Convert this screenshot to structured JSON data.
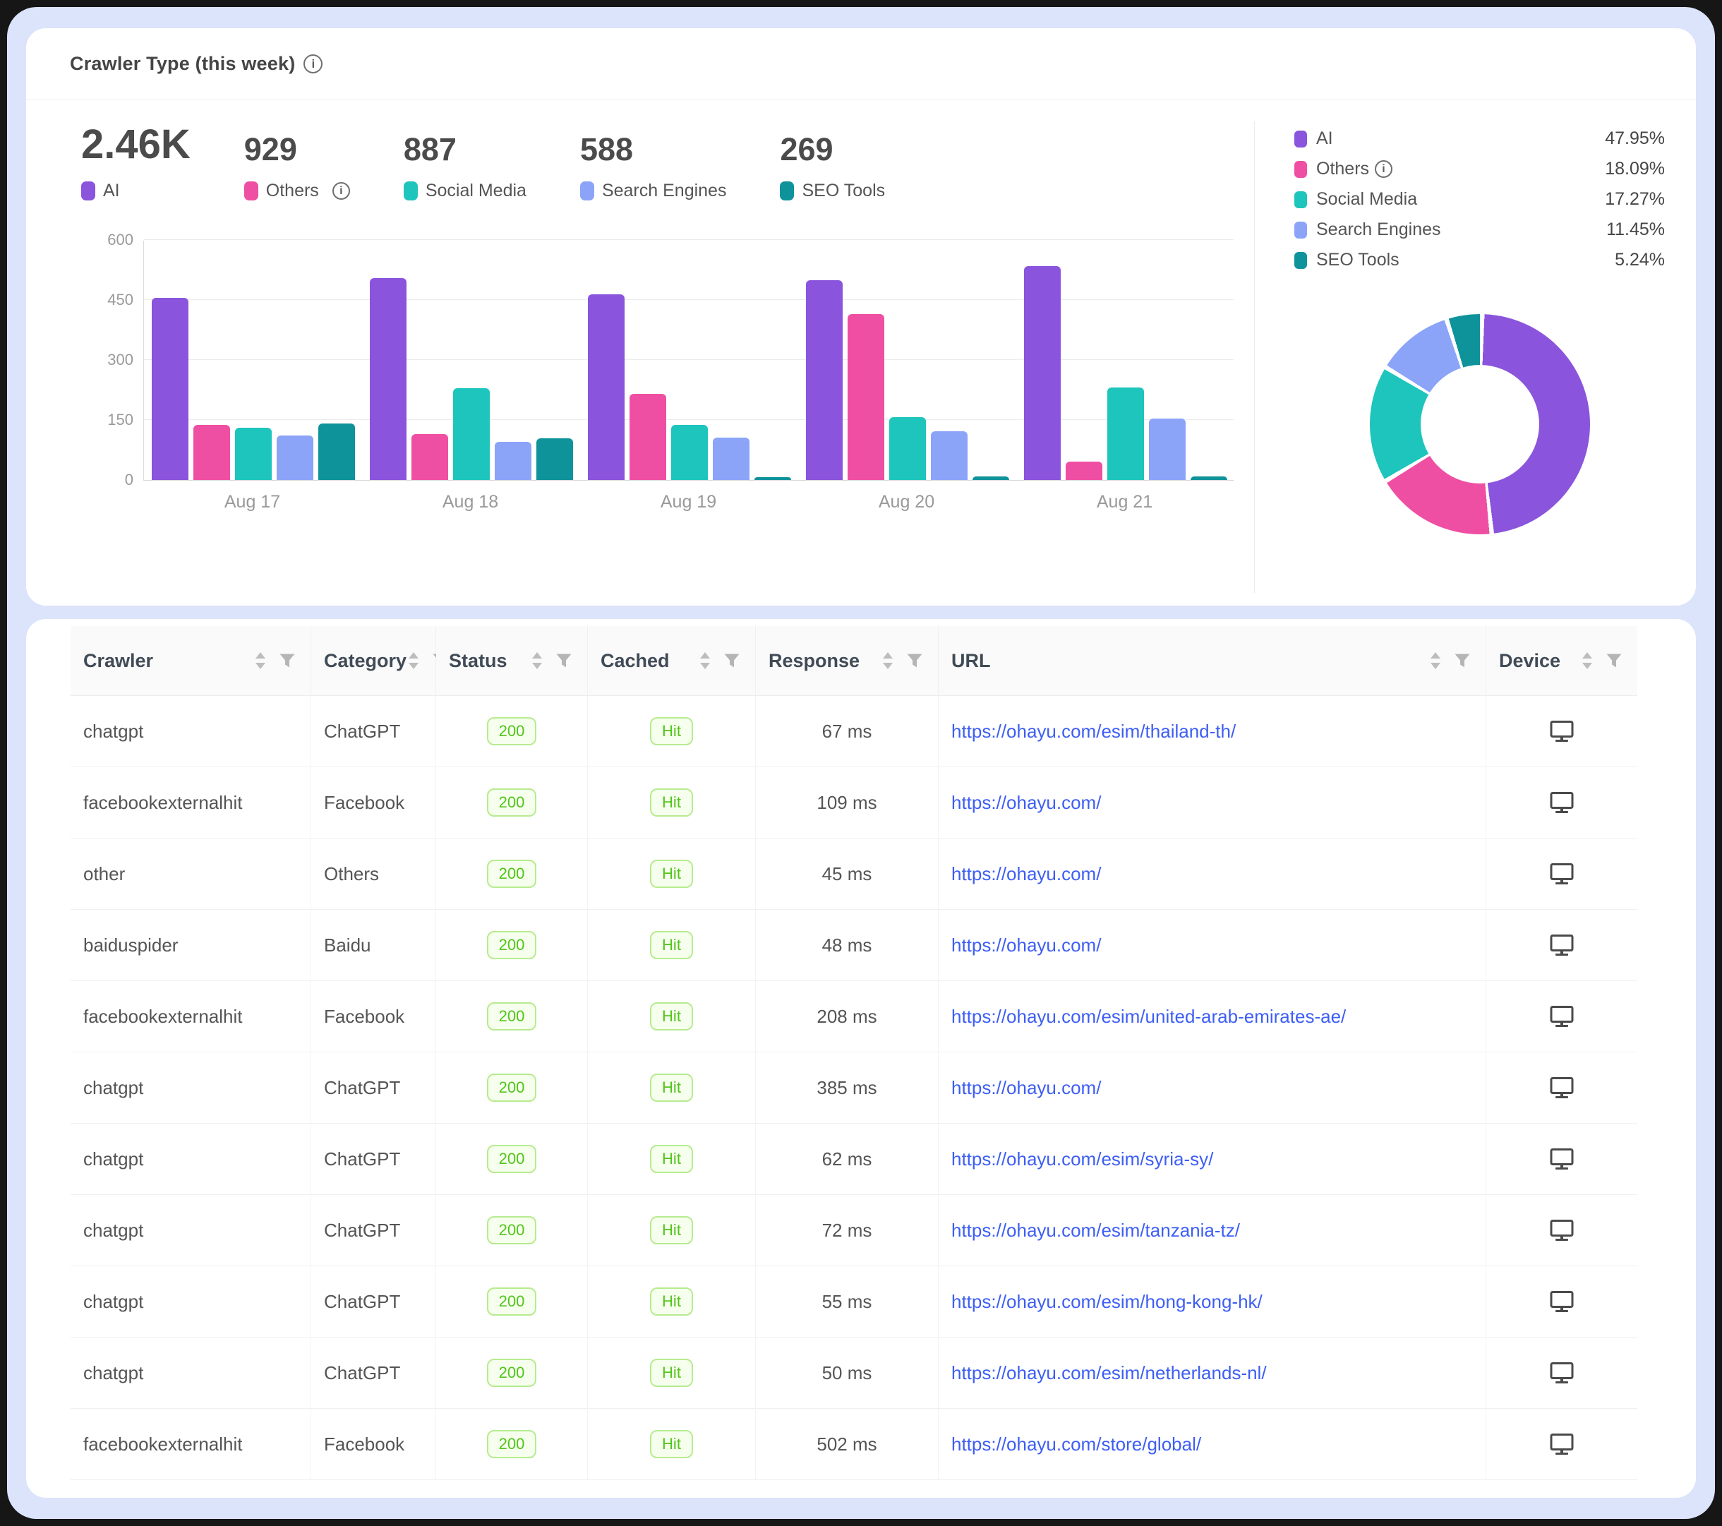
{
  "card": {
    "title": "Crawler Type (this week)",
    "stats": [
      {
        "value": "2.46K",
        "label": "AI",
        "color": "#8a54dd",
        "info": false
      },
      {
        "value": "929",
        "label": "Others",
        "color": "#ef4fa2",
        "info": true
      },
      {
        "value": "887",
        "label": "Social Media",
        "color": "#1dc5bc",
        "info": false
      },
      {
        "value": "588",
        "label": "Search Engines",
        "color": "#8ba4f8",
        "info": false
      },
      {
        "value": "269",
        "label": "SEO Tools",
        "color": "#0f939b",
        "info": false
      }
    ]
  },
  "chart_data": {
    "type": "bar",
    "title": "Crawler Type (this week)",
    "categories": [
      "Aug 17",
      "Aug 18",
      "Aug 19",
      "Aug 20",
      "Aug 21"
    ],
    "series": [
      {
        "name": "AI",
        "color": "#8a54dd",
        "values": [
          455,
          505,
          465,
          500,
          535
        ]
      },
      {
        "name": "Others",
        "color": "#ef4fa2",
        "values": [
          138,
          115,
          215,
          415,
          46
        ]
      },
      {
        "name": "Social Media",
        "color": "#1dc5bc",
        "values": [
          130,
          230,
          138,
          157,
          232
        ]
      },
      {
        "name": "Search Engines",
        "color": "#8ba4f8",
        "values": [
          112,
          95,
          106,
          122,
          153
        ]
      },
      {
        "name": "SEO Tools",
        "color": "#0f939b",
        "values": [
          142,
          104,
          6,
          8,
          9
        ]
      }
    ],
    "yticks": [
      0,
      150,
      300,
      450,
      600
    ],
    "ylim": [
      0,
      600
    ],
    "grid": true,
    "legend_position": "right",
    "donut": [
      {
        "label": "AI",
        "pct": 47.95,
        "pct_label": "47.95%",
        "color": "#8a54dd",
        "info": false
      },
      {
        "label": "Others",
        "pct": 18.09,
        "pct_label": "18.09%",
        "color": "#ef4fa2",
        "info": true
      },
      {
        "label": "Social Media",
        "pct": 17.27,
        "pct_label": "17.27%",
        "color": "#1dc5bc",
        "info": false
      },
      {
        "label": "Search Engines",
        "pct": 11.45,
        "pct_label": "11.45%",
        "color": "#8ba4f8",
        "info": false
      },
      {
        "label": "SEO Tools",
        "pct": 5.24,
        "pct_label": "5.24%",
        "color": "#0f939b",
        "info": false
      }
    ]
  },
  "table": {
    "columns": [
      {
        "label": "Crawler",
        "sort": true,
        "filter": false
      },
      {
        "label": "Category",
        "sort": false,
        "filter": false
      },
      {
        "label": "Status",
        "sort": true,
        "filter": true
      },
      {
        "label": "Cached",
        "sort": true,
        "filter": true
      },
      {
        "label": "Response",
        "sort": true,
        "filter": true
      },
      {
        "label": "URL",
        "sort": true,
        "filter": false
      },
      {
        "label": "Device",
        "sort": true,
        "filter": true
      }
    ],
    "rows": [
      {
        "crawler": "chatgpt",
        "category": "ChatGPT",
        "status": "200",
        "cached": "Hit",
        "response": "67 ms",
        "url": "https://ohayu.com/esim/thailand-th/",
        "device": "desktop-icon"
      },
      {
        "crawler": "facebookexternalhit",
        "category": "Facebook",
        "status": "200",
        "cached": "Hit",
        "response": "109 ms",
        "url": "https://ohayu.com/",
        "device": "desktop-icon"
      },
      {
        "crawler": "other",
        "category": "Others",
        "status": "200",
        "cached": "Hit",
        "response": "45 ms",
        "url": "https://ohayu.com/",
        "device": "desktop-icon"
      },
      {
        "crawler": "baiduspider",
        "category": "Baidu",
        "status": "200",
        "cached": "Hit",
        "response": "48 ms",
        "url": "https://ohayu.com/",
        "device": "desktop-icon"
      },
      {
        "crawler": "facebookexternalhit",
        "category": "Facebook",
        "status": "200",
        "cached": "Hit",
        "response": "208 ms",
        "url": "https://ohayu.com/esim/united-arab-emirates-ae/",
        "device": "desktop-icon"
      },
      {
        "crawler": "chatgpt",
        "category": "ChatGPT",
        "status": "200",
        "cached": "Hit",
        "response": "385 ms",
        "url": "https://ohayu.com/",
        "device": "desktop-icon"
      },
      {
        "crawler": "chatgpt",
        "category": "ChatGPT",
        "status": "200",
        "cached": "Hit",
        "response": "62 ms",
        "url": "https://ohayu.com/esim/syria-sy/",
        "device": "desktop-icon"
      },
      {
        "crawler": "chatgpt",
        "category": "ChatGPT",
        "status": "200",
        "cached": "Hit",
        "response": "72 ms",
        "url": "https://ohayu.com/esim/tanzania-tz/",
        "device": "desktop-icon"
      },
      {
        "crawler": "chatgpt",
        "category": "ChatGPT",
        "status": "200",
        "cached": "Hit",
        "response": "55 ms",
        "url": "https://ohayu.com/esim/hong-kong-hk/",
        "device": "desktop-icon"
      },
      {
        "crawler": "chatgpt",
        "category": "ChatGPT",
        "status": "200",
        "cached": "Hit",
        "response": "50 ms",
        "url": "https://ohayu.com/esim/netherlands-nl/",
        "device": "desktop-icon"
      },
      {
        "crawler": "facebookexternalhit",
        "category": "Facebook",
        "status": "200",
        "cached": "Hit",
        "response": "502 ms",
        "url": "https://ohayu.com/store/global/",
        "device": "desktop-icon"
      }
    ]
  }
}
